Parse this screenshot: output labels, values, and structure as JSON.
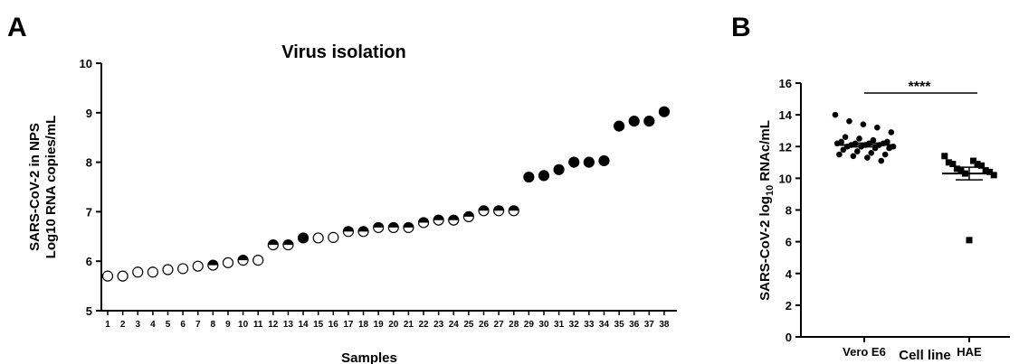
{
  "panel_a": {
    "letter": "A",
    "chart_data": {
      "type": "scatter",
      "title": "Virus isolation",
      "xlabel": "Samples",
      "ylabel_line1": "SARS-CoV-2  in NPS",
      "ylabel_line2": "Log10 RNA copies/mL",
      "ylim": [
        5,
        10
      ],
      "yticks": [
        "5",
        "6",
        "7",
        "8",
        "9",
        "10"
      ],
      "x": [
        "1",
        "2",
        "3",
        "4",
        "5",
        "6",
        "7",
        "8",
        "9",
        "10",
        "11",
        "12",
        "13",
        "14",
        "15",
        "16",
        "17",
        "18",
        "19",
        "20",
        "21",
        "22",
        "23",
        "24",
        "25",
        "26",
        "27",
        "28",
        "29",
        "30",
        "31",
        "32",
        "33",
        "34",
        "35",
        "36",
        "37",
        "38"
      ],
      "values": [
        5.7,
        5.7,
        5.78,
        5.78,
        5.83,
        5.85,
        5.9,
        5.92,
        5.97,
        6.02,
        6.02,
        6.33,
        6.33,
        6.47,
        6.47,
        6.48,
        6.6,
        6.6,
        6.68,
        6.68,
        6.68,
        6.78,
        6.83,
        6.83,
        6.9,
        7.02,
        7.02,
        7.02,
        7.7,
        7.73,
        7.85,
        8.0,
        8.0,
        8.03,
        8.73,
        8.83,
        8.83,
        9.02
      ],
      "marker_fill": [
        "empty",
        "empty",
        "empty",
        "empty",
        "empty",
        "empty",
        "empty",
        "half",
        "empty",
        "half",
        "empty",
        "half",
        "half",
        "full",
        "empty",
        "empty",
        "half",
        "half",
        "half",
        "half",
        "half",
        "half",
        "half",
        "half",
        "half",
        "half",
        "half",
        "half",
        "full",
        "full",
        "full",
        "full",
        "full",
        "full",
        "full",
        "full",
        "full",
        "full"
      ],
      "grid": false,
      "legend": "none"
    }
  },
  "panel_b": {
    "letter": "B",
    "chart_data": {
      "type": "scatter",
      "categories": [
        "Vero E6",
        "HAE"
      ],
      "xlabel": "Cell line",
      "ylabel": "SARS-CoV-2 log",
      "ylabel_sub": "10",
      "ylabel_tail": " RNAc/mL",
      "ylim": [
        0,
        16
      ],
      "yticks": [
        "0",
        "2",
        "4",
        "6",
        "8",
        "10",
        "12",
        "14",
        "16"
      ],
      "series": [
        {
          "category": "Vero E6",
          "marker": "circle",
          "values": [
            14.0,
            13.6,
            13.4,
            13.2,
            12.9,
            12.6,
            12.5,
            12.4,
            12.3,
            12.3,
            12.2,
            12.2,
            12.2,
            12.2,
            12.1,
            12.1,
            12.1,
            12.0,
            12.0,
            12.0,
            11.9,
            11.9,
            11.8,
            11.7,
            11.6,
            11.5,
            11.5,
            11.4,
            11.3,
            11.1
          ],
          "mean": 12.1,
          "sem": 0.12
        },
        {
          "category": "HAE",
          "marker": "square",
          "values": [
            11.4,
            11.1,
            11.0,
            10.9,
            10.9,
            10.8,
            10.6,
            10.5,
            10.5,
            10.4,
            10.3,
            10.2,
            6.1
          ],
          "mean": 10.3,
          "sem": 0.4
        }
      ],
      "significance": "****",
      "grid": false,
      "legend": "none"
    }
  }
}
